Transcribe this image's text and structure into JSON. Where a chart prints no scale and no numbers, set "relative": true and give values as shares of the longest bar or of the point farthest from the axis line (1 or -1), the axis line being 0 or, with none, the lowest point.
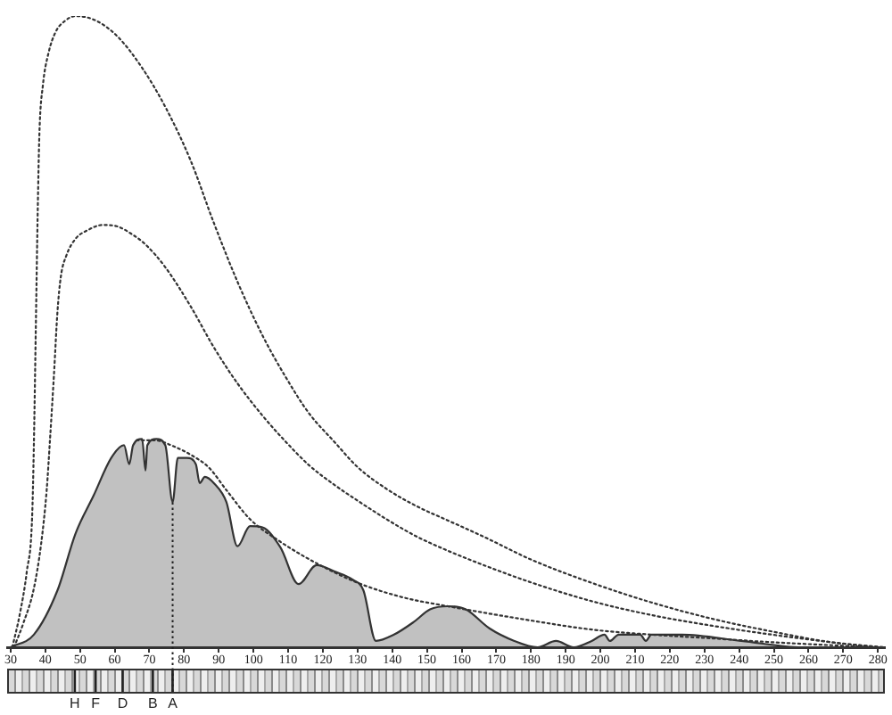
{
  "chart_data": {
    "type": "line",
    "relative": true,
    "xlim": [
      29,
      282
    ],
    "xticks": [
      30,
      40,
      50,
      60,
      70,
      80,
      90,
      100,
      110,
      120,
      130,
      140,
      150,
      160,
      170,
      180,
      190,
      200,
      210,
      220,
      230,
      240,
      250,
      260,
      270,
      280
    ],
    "marker": "none",
    "series": [
      {
        "color": "#333333",
        "line_style": "dotted",
        "x": [
          30.5,
          32.6,
          34.7,
          36.2,
          36.7,
          37.3,
          37.8,
          38.3,
          39.3,
          40.9,
          43.0,
          45.6,
          48.7,
          54.9,
          61.1,
          67.9,
          74.6,
          81.9,
          88.6,
          95.4,
          102.6,
          109.4,
          116.1,
          123.4,
          130.1,
          138.9,
          147.2,
          156.0,
          166.4,
          180.4,
          197.5,
          214.7,
          232.3,
          249.4,
          266.5,
          281.6
        ],
        "values": [
          0,
          0.051,
          0.121,
          0.206,
          0.319,
          0.517,
          0.686,
          0.814,
          0.89,
          0.941,
          0.975,
          0.992,
          1,
          0.992,
          0.966,
          0.918,
          0.856,
          0.771,
          0.672,
          0.579,
          0.494,
          0.427,
          0.37,
          0.325,
          0.285,
          0.249,
          0.223,
          0.201,
          0.175,
          0.138,
          0.102,
          0.071,
          0.045,
          0.025,
          0.008,
          0
        ]
      },
      {
        "color": "#333333",
        "line_style": "dotted",
        "x": [
          31.0,
          33.6,
          36.7,
          38.8,
          40.4,
          41.4,
          42.5,
          43.5,
          44.5,
          46.1,
          48.7,
          52.3,
          56.5,
          60.6,
          64.8,
          68.9,
          74.6,
          81.9,
          88.6,
          95.4,
          102.6,
          109.4,
          116.1,
          123.4,
          130.1,
          138.9,
          147.2,
          156.0,
          166.4,
          180.4,
          197.5,
          214.7,
          232.3,
          249.4,
          266.5,
          280.0
        ],
        "values": [
          0,
          0.037,
          0.093,
          0.164,
          0.249,
          0.333,
          0.432,
          0.531,
          0.588,
          0.621,
          0.647,
          0.661,
          0.669,
          0.667,
          0.655,
          0.638,
          0.602,
          0.54,
          0.475,
          0.418,
          0.367,
          0.325,
          0.288,
          0.257,
          0.232,
          0.201,
          0.175,
          0.153,
          0.13,
          0.102,
          0.073,
          0.051,
          0.034,
          0.02,
          0.008,
          0
        ]
      },
      {
        "color": "#333333",
        "line_style": "dotted",
        "x": [
          66.3,
          71.5,
          76.7,
          81.9,
          87.1,
          92.2,
          99.0,
          107.8,
          118.2,
          130.1,
          143.1,
          156.0,
          180.4,
          197.5,
          214.7,
          232.3,
          249.4,
          279.0
        ],
        "values": [
          0.328,
          0.328,
          0.319,
          0.305,
          0.285,
          0.249,
          0.203,
          0.167,
          0.133,
          0.102,
          0.079,
          0.065,
          0.042,
          0.028,
          0.02,
          0.014,
          0.008,
          0
        ]
      },
      {
        "type": "area",
        "color": "#333333",
        "line_style": "solid",
        "x": [
          30.0,
          36.7,
          43.5,
          48.7,
          53.9,
          59.0,
          62.7,
          64.2,
          65.3,
          67.9,
          68.9,
          69.4,
          72.0,
          74.6,
          76.7,
          78.2,
          80.8,
          83.4,
          84.5,
          86.0,
          88.6,
          92.2,
          95.4,
          99.0,
          102.6,
          107.8,
          113.0,
          118.2,
          123.4,
          128.6,
          131.7,
          135.3,
          140.5,
          146.2,
          150.9,
          156.0,
          161.2,
          168.0,
          175.2,
          181.9,
          187.2,
          192.3,
          197.5,
          201.2,
          202.7,
          205.3,
          211.5,
          213.1,
          214.7,
          223.5,
          240.6,
          258.2,
          281.0
        ],
        "values": [
          0,
          0.02,
          0.09,
          0.18,
          0.24,
          0.3,
          0.32,
          0.29,
          0.32,
          0.33,
          0.28,
          0.32,
          0.33,
          0.32,
          0.23,
          0.3,
          0.3,
          0.29,
          0.26,
          0.27,
          0.26,
          0.23,
          0.16,
          0.192,
          0.19,
          0.158,
          0.1,
          0.13,
          0.12,
          0.107,
          0.09,
          0.01,
          0.02,
          0.04,
          0.06,
          0.065,
          0.06,
          0.03,
          0.01,
          0,
          0.01,
          0,
          0.01,
          0.02,
          0.01,
          0.02,
          0.02,
          0.01,
          0.02,
          0.02,
          0.01,
          0,
          0
        ]
      }
    ],
    "ref_lines": [
      {
        "axis": "x",
        "value": 48.5,
        "label": "H",
        "color": "#222222"
      },
      {
        "axis": "x",
        "value": 54.5,
        "label": "F",
        "color": "#222222"
      },
      {
        "axis": "x",
        "value": 62.3,
        "label": "D",
        "color": "#222222"
      },
      {
        "axis": "x",
        "value": 71.0,
        "label": "B",
        "color": "#222222"
      },
      {
        "axis": "x",
        "value": 76.7,
        "label": "A",
        "color": "#222222",
        "line_style": "dotted"
      }
    ]
  }
}
